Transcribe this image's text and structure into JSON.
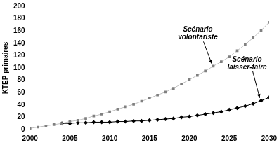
{
  "chart_data": {
    "type": "line",
    "y_label": "KTEP primaires",
    "x": [
      2000,
      2001,
      2002,
      2003,
      2004,
      2005,
      2006,
      2007,
      2008,
      2009,
      2010,
      2011,
      2012,
      2013,
      2014,
      2015,
      2016,
      2017,
      2018,
      2019,
      2020,
      2021,
      2022,
      2023,
      2024,
      2025,
      2026,
      2027,
      2028,
      2029,
      2030
    ],
    "series": [
      {
        "name": "Scénario volontariste",
        "color": "#808080",
        "marker": "square",
        "line_style": "solid",
        "values": [
          2,
          4,
          6,
          8,
          10,
          13,
          15,
          18,
          22,
          25,
          29,
          33,
          37,
          41,
          46,
          51,
          56,
          61,
          67,
          74,
          81,
          88,
          95,
          103,
          110,
          118,
          128,
          138,
          149,
          161,
          174
        ]
      },
      {
        "name": "Scénario laisser-faire",
        "color": "#000000",
        "marker": "diamond",
        "line_style": "solid",
        "values": [
          null,
          null,
          null,
          null,
          10,
          10,
          11,
          11,
          12,
          12,
          12,
          13,
          13,
          14,
          14,
          15,
          16,
          17,
          18,
          20,
          21,
          23,
          25,
          27,
          29,
          32,
          35,
          38,
          42,
          47,
          52
        ]
      }
    ],
    "annotations": [
      {
        "text": "Scénario volontariste",
        "x": 2023,
        "y": 103
      },
      {
        "text": "Scénario laisser-faire",
        "x": 2029,
        "y": 48
      }
    ],
    "xlim": [
      2000,
      2030
    ],
    "xticks": [
      2000,
      2005,
      2010,
      2015,
      2020,
      2025,
      2030
    ],
    "ylim": [
      0,
      200
    ],
    "yticks": [
      0,
      20,
      40,
      60,
      80,
      100,
      120,
      140,
      160,
      180,
      200
    ],
    "grid": false
  }
}
